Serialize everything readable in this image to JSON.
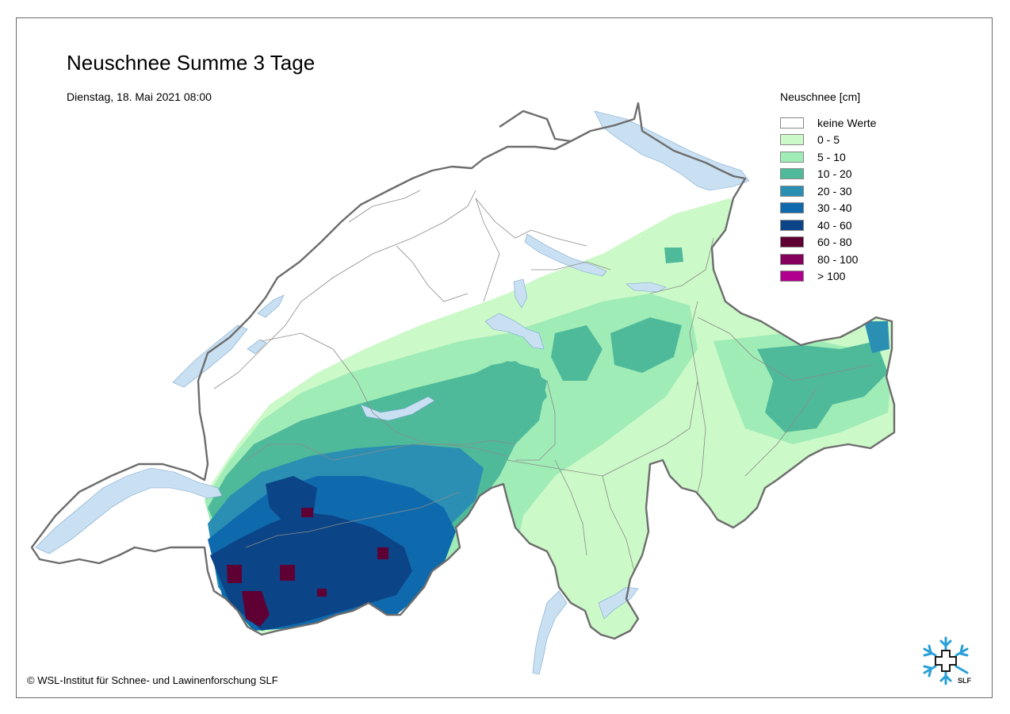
{
  "title": "Neuschnee Summe 3 Tage",
  "subtitle": "Dienstag, 18. Mai 2021 08:00",
  "copyright": "© WSL-Institut für Schnee- und Lawinenforschung SLF",
  "logo": {
    "text": "SLF",
    "icon": "snowflake-cross-logo"
  },
  "legend": {
    "title": "Neuschnee [cm]",
    "classes": [
      {
        "label": "keine Werte",
        "color": "#ffffff"
      },
      {
        "label": "0 - 5",
        "color": "#ccf9c8"
      },
      {
        "label": "5 - 10",
        "color": "#a0ecb7"
      },
      {
        "label": "10 - 20",
        "color": "#4fba9a"
      },
      {
        "label": "20 - 30",
        "color": "#2a8fb3"
      },
      {
        "label": "30 - 40",
        "color": "#0f6aad"
      },
      {
        "label": "40 - 60",
        "color": "#0c4587"
      },
      {
        "label": "60 - 80",
        "color": "#5e0034"
      },
      {
        "label": "80 - 100",
        "color": "#84005c"
      },
      {
        "label": "> 100",
        "color": "#b0008c"
      }
    ]
  },
  "colors": {
    "border": "#6d6d6d",
    "lake": "#c9e0f3",
    "inner_border": "#8a8a8a"
  }
}
